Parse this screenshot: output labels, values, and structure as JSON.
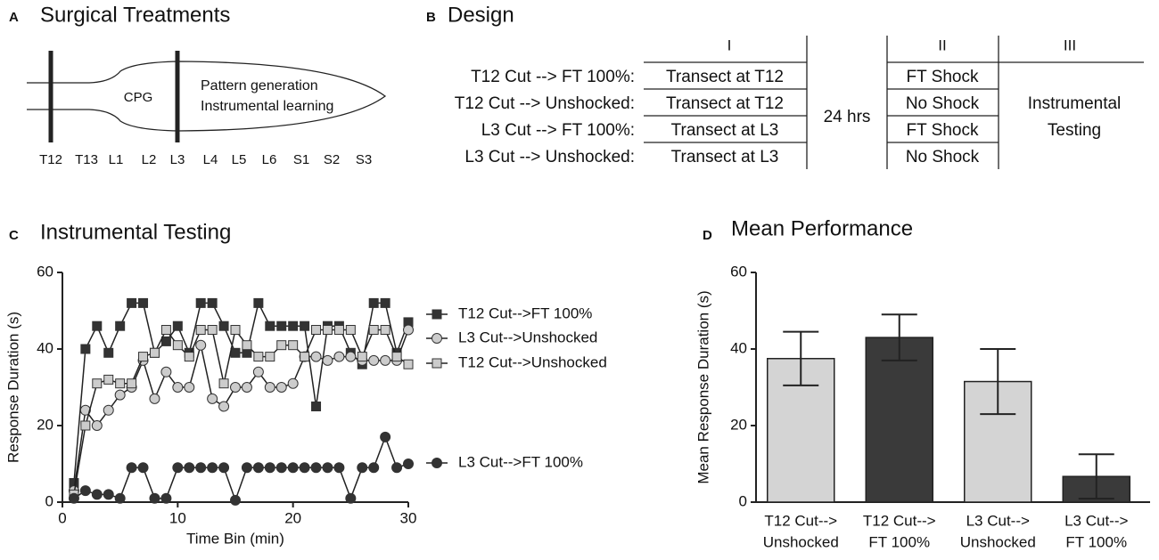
{
  "panel_a": {
    "letter": "A",
    "title": "Surgical Treatments",
    "cpg": "CPG",
    "functions": [
      "Pattern generation",
      "Instrumental learning"
    ],
    "segments": [
      "T12",
      "T13",
      "L1",
      "L2",
      "L3",
      "L4",
      "L5",
      "L6",
      "S1",
      "S2",
      "S3"
    ]
  },
  "panel_b": {
    "letter": "B",
    "title": "Design",
    "columns": [
      "I",
      "II",
      "III"
    ],
    "rows": [
      "T12 Cut --> FT 100%:",
      "T12 Cut --> Unshocked:",
      "L3 Cut --> FT 100%:",
      "L3 Cut --> Unshocked:"
    ],
    "col_1": [
      "Transect at T12",
      "Transect at T12",
      "Transect at L3",
      "Transect at L3"
    ],
    "delay": "24 hrs",
    "col_2": [
      "FT Shock",
      "No Shock",
      "FT Shock",
      "No Shock"
    ],
    "col_3": [
      "Instrumental",
      "Testing"
    ]
  },
  "chart_data": [
    {
      "type": "line",
      "letter": "C",
      "title": "Instrumental Testing",
      "x_label": "Time Bin (min)",
      "y_label": "Response Duration (s)",
      "x": [
        1,
        2,
        3,
        4,
        5,
        6,
        7,
        8,
        9,
        10,
        11,
        12,
        13,
        14,
        15,
        16,
        17,
        18,
        19,
        20,
        21,
        22,
        23,
        24,
        25,
        26,
        27,
        28,
        29,
        30
      ],
      "xlim": [
        0,
        30
      ],
      "xticks": [
        0,
        10,
        20,
        30
      ],
      "ylim": [
        0,
        60
      ],
      "yticks": [
        0,
        20,
        40,
        60
      ],
      "series": [
        {
          "name": "T12 Cut-->FT 100%",
          "color": "#333333",
          "marker": "square",
          "values": [
            5,
            40,
            46,
            39,
            46,
            52,
            52,
            39,
            42,
            46,
            39,
            52,
            52,
            46,
            39,
            39,
            52,
            46,
            46,
            46,
            46,
            25,
            46,
            46,
            39,
            36,
            52,
            52,
            39,
            47
          ]
        },
        {
          "name": "L3 Cut-->Unshocked",
          "color": "#cccccc",
          "marker": "circle",
          "values": [
            3,
            24,
            20,
            24,
            28,
            30,
            37,
            27,
            34,
            30,
            30,
            41,
            27,
            25,
            30,
            30,
            34,
            30,
            30,
            31,
            38,
            38,
            37,
            38,
            38,
            37,
            37,
            37,
            37,
            45
          ]
        },
        {
          "name": "T12 Cut-->Unshocked",
          "color": "#cccccc",
          "marker": "square",
          "values": [
            2,
            20,
            31,
            32,
            31,
            31,
            38,
            39,
            45,
            41,
            38,
            45,
            45,
            31,
            45,
            41,
            38,
            38,
            41,
            41,
            38,
            45,
            45,
            45,
            45,
            38,
            45,
            45,
            38,
            36
          ]
        },
        {
          "name": "L3 Cut-->FT 100%",
          "color": "#333333",
          "marker": "circle",
          "values": [
            1,
            3,
            2,
            2,
            1,
            9,
            9,
            1,
            1,
            9,
            9,
            9,
            9,
            9,
            0.5,
            9,
            9,
            9,
            9,
            9,
            9,
            9,
            9,
            9,
            1,
            9,
            9,
            17,
            9,
            10
          ]
        }
      ]
    },
    {
      "type": "bar",
      "letter": "D",
      "title": "Mean Performance",
      "y_label": "Mean Response Duration (s)",
      "categories": [
        [
          "T12 Cut-->",
          "Unshocked"
        ],
        [
          "T12 Cut-->",
          "FT 100%"
        ],
        [
          "L3 Cut-->",
          "Unshocked"
        ],
        [
          "L3 Cut-->",
          "FT 100%"
        ]
      ],
      "values": [
        37.5,
        43,
        31.5,
        6.7
      ],
      "errors": [
        7,
        6,
        8.5,
        5.8
      ],
      "colors": [
        "#d4d4d4",
        "#3a3a3a",
        "#d4d4d4",
        "#3a3a3a"
      ],
      "ylim": [
        0,
        60
      ],
      "yticks": [
        0,
        20,
        40,
        60
      ]
    }
  ]
}
